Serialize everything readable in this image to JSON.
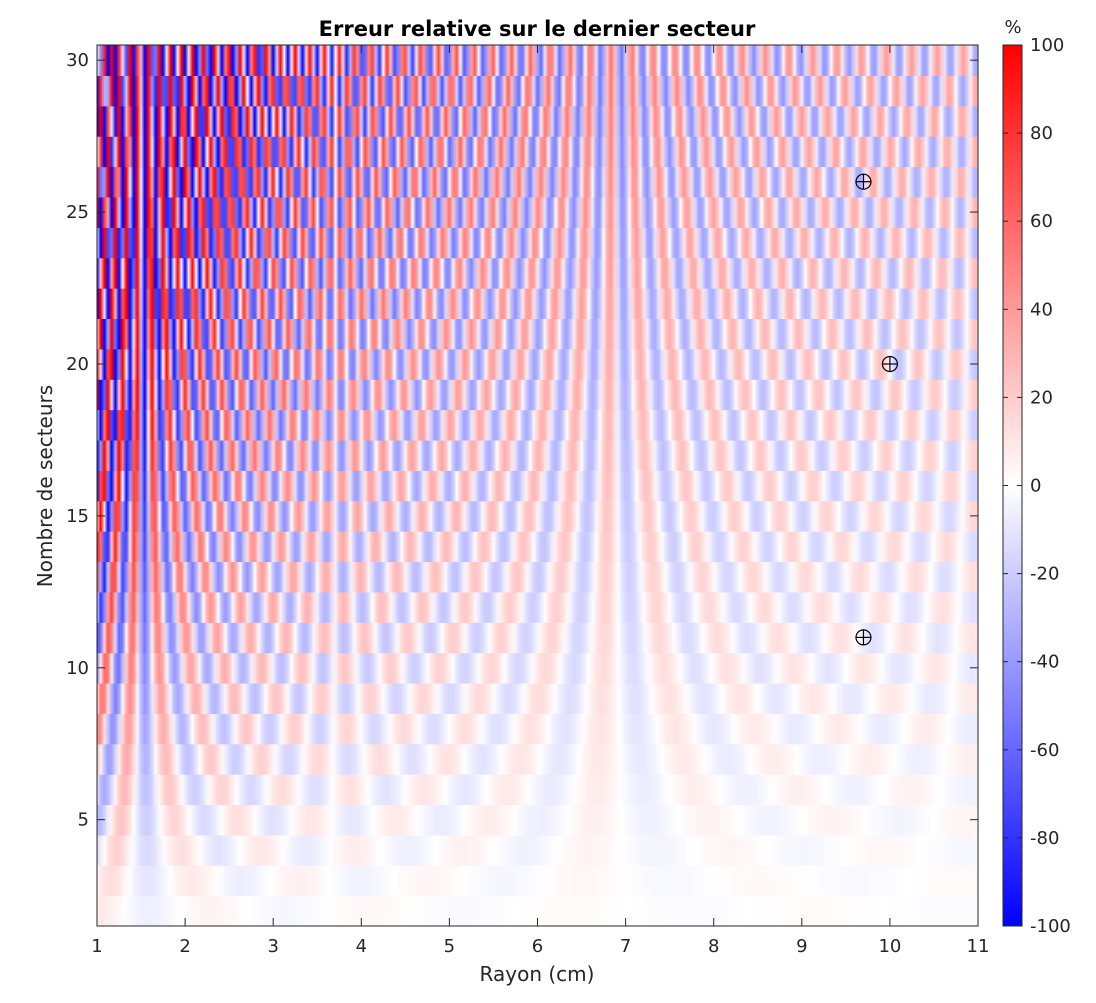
{
  "chart_data": {
    "type": "heatmap",
    "title": "Erreur relative sur le dernier secteur",
    "xlabel": "Rayon (cm)",
    "ylabel": "Nombre de secteurs",
    "xlim": [
      1,
      11
    ],
    "ylim": [
      1.5,
      30.5
    ],
    "x_ticks": [
      "1",
      "2",
      "3",
      "4",
      "5",
      "6",
      "7",
      "8",
      "9",
      "10",
      "11"
    ],
    "y_ticks": [
      "5",
      "10",
      "15",
      "20",
      "25",
      "30"
    ],
    "y_tick_values": [
      5,
      10,
      15,
      20,
      25,
      30
    ],
    "x_tick_values": [
      1,
      2,
      3,
      4,
      5,
      6,
      7,
      8,
      9,
      10,
      11
    ],
    "rows": {
      "from": 2,
      "to": 30,
      "step": 1
    },
    "colorbar": {
      "unit": "%",
      "limits": [
        -100,
        100
      ],
      "ticks": [
        "100",
        "80",
        "60",
        "40",
        "20",
        "0",
        "-20",
        "-40",
        "-60",
        "-80",
        "-100"
      ],
      "tick_values": [
        100,
        80,
        60,
        40,
        20,
        0,
        -20,
        -40,
        -60,
        -80,
        -100
      ],
      "colormap": [
        "#0000ff",
        "#ffffff",
        "#ff0000"
      ]
    },
    "markers": [
      {
        "x": 9.7,
        "y": 26,
        "symbol": "circle-plus"
      },
      {
        "x": 10.0,
        "y": 20,
        "symbol": "circle-plus"
      },
      {
        "x": 9.7,
        "y": 11,
        "symbol": "circle-plus"
      }
    ]
  }
}
